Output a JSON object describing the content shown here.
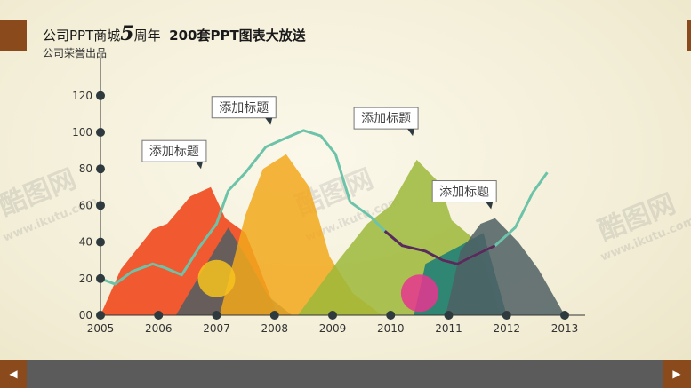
{
  "header": {
    "title_part1": "公司PPT商城",
    "title_num": "5",
    "title_part2": "周年",
    "title_part3": "200套PPT图表大放送",
    "subtitle": "公司荣誉出品"
  },
  "watermark": {
    "brand": "酷图网",
    "url": "www.ikutu.com"
  },
  "colors": {
    "red": "#f03e12",
    "orange": "#f2a81c",
    "green": "#9cb93a",
    "teal": "#1a7b78",
    "slate": "#4f5f63",
    "line": "#6dc3a9",
    "line_dark": "#5a2a5a",
    "circle_yellow": "#f7c320",
    "circle_pink": "#e8358f",
    "nav": "#8a4a1b",
    "footer": "#5b5b5b"
  },
  "chart_data": {
    "type": "area",
    "x": [
      "2005",
      "2006",
      "2007",
      "2008",
      "2009",
      "2010",
      "2011",
      "2012",
      "2013"
    ],
    "ylim": [
      0,
      140
    ],
    "yticks": [
      0,
      20,
      40,
      60,
      80,
      100,
      120
    ],
    "ytick_labels": [
      "00",
      "20",
      "40",
      "60",
      "80",
      "100",
      "120"
    ],
    "series": [
      {
        "color_key": "red",
        "points": [
          [
            2005.0,
            0
          ],
          [
            2005.35,
            25
          ],
          [
            2005.9,
            47
          ],
          [
            2006.15,
            50
          ],
          [
            2006.55,
            65
          ],
          [
            2006.9,
            70
          ],
          [
            2007.15,
            53
          ],
          [
            2007.5,
            45
          ],
          [
            2007.75,
            25
          ],
          [
            2008.05,
            0
          ]
        ]
      },
      {
        "color_key": "slate",
        "points": [
          [
            2006.3,
            0
          ],
          [
            2007.2,
            48
          ],
          [
            2007.55,
            30
          ],
          [
            2007.9,
            10
          ],
          [
            2008.3,
            0
          ]
        ]
      },
      {
        "color_key": "orange",
        "points": [
          [
            2007.05,
            0
          ],
          [
            2007.5,
            55
          ],
          [
            2007.8,
            80
          ],
          [
            2008.2,
            88
          ],
          [
            2008.6,
            70
          ],
          [
            2008.95,
            32
          ],
          [
            2009.35,
            12
          ],
          [
            2009.85,
            0
          ]
        ]
      },
      {
        "color_key": "green",
        "points": [
          [
            2008.4,
            0
          ],
          [
            2009.1,
            30
          ],
          [
            2009.6,
            50
          ],
          [
            2010.0,
            60
          ],
          [
            2010.45,
            85
          ],
          [
            2010.85,
            72
          ],
          [
            2011.05,
            52
          ],
          [
            2011.5,
            40
          ],
          [
            2011.9,
            0
          ]
        ]
      },
      {
        "color_key": "teal",
        "points": [
          [
            2010.4,
            0
          ],
          [
            2010.6,
            28
          ],
          [
            2011.2,
            38
          ],
          [
            2011.6,
            45
          ],
          [
            2012.0,
            0
          ]
        ]
      },
      {
        "color_key": "slate",
        "points": [
          [
            2010.95,
            0
          ],
          [
            2011.2,
            35
          ],
          [
            2011.55,
            50
          ],
          [
            2011.8,
            53
          ],
          [
            2012.2,
            40
          ],
          [
            2012.55,
            25
          ],
          [
            2013.0,
            0
          ]
        ]
      }
    ],
    "line": {
      "color_key": "line",
      "points": [
        [
          2005.0,
          20
        ],
        [
          2005.25,
          17
        ],
        [
          2005.55,
          24
        ],
        [
          2005.9,
          28
        ],
        [
          2006.1,
          26
        ],
        [
          2006.4,
          22
        ],
        [
          2006.7,
          37
        ],
        [
          2007.0,
          50
        ],
        [
          2007.2,
          68
        ],
        [
          2007.5,
          78
        ],
        [
          2007.85,
          92
        ],
        [
          2008.2,
          97
        ],
        [
          2008.5,
          101
        ],
        [
          2008.8,
          98
        ],
        [
          2009.05,
          88
        ],
        [
          2009.3,
          62
        ],
        [
          2009.65,
          54
        ],
        [
          2009.9,
          46
        ],
        [
          2010.2,
          38
        ],
        [
          2010.6,
          35
        ],
        [
          2010.9,
          30
        ],
        [
          2011.15,
          28
        ],
        [
          2011.4,
          32
        ],
        [
          2011.8,
          38
        ],
        [
          2012.15,
          48
        ],
        [
          2012.45,
          67
        ],
        [
          2012.7,
          78
        ]
      ]
    },
    "line_dark_range": [
      2009.9,
      2012.0
    ],
    "circles": [
      {
        "color_key": "circle_yellow",
        "x": 2007.0,
        "y": 20
      },
      {
        "color_key": "circle_pink",
        "x": 2010.5,
        "y": 12
      }
    ],
    "annotations": [
      {
        "text": "添加标题",
        "x": 2006.7,
        "y": 80
      },
      {
        "text": "添加标题",
        "x": 2007.9,
        "y": 104
      },
      {
        "text": "添加标题",
        "x": 2010.35,
        "y": 98
      },
      {
        "text": "添加标题",
        "x": 2011.7,
        "y": 58
      }
    ]
  }
}
